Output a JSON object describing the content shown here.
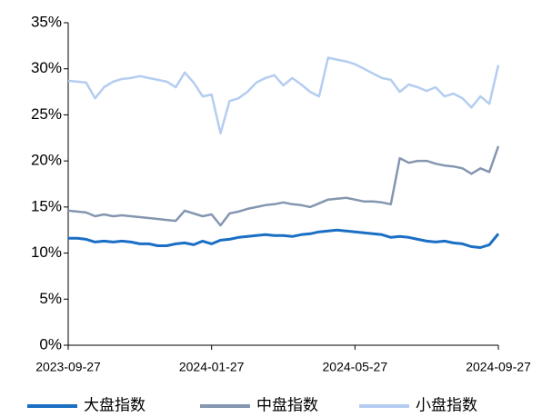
{
  "chart_data": {
    "type": "line",
    "categories": [
      "2023-09-27",
      null,
      null,
      null,
      null,
      null,
      null,
      null,
      null,
      null,
      null,
      null,
      null,
      null,
      null,
      null,
      "2024-01-27",
      null,
      null,
      null,
      null,
      null,
      null,
      null,
      null,
      null,
      null,
      null,
      null,
      null,
      null,
      null,
      "2024-05-27",
      null,
      null,
      null,
      null,
      null,
      null,
      null,
      null,
      null,
      null,
      null,
      null,
      null,
      null,
      null,
      "2024-09-27"
    ],
    "series": [
      {
        "name": "大盘指数",
        "color": "#1a6fc4",
        "values": [
          11.6,
          11.6,
          11.5,
          11.2,
          11.3,
          11.2,
          11.3,
          11.2,
          11.0,
          11.0,
          10.8,
          10.8,
          11.0,
          11.1,
          10.9,
          11.3,
          11.0,
          11.4,
          11.5,
          11.7,
          11.8,
          11.9,
          12.0,
          11.9,
          11.9,
          11.8,
          12.0,
          12.1,
          12.3,
          12.4,
          12.5,
          12.4,
          12.3,
          12.2,
          12.1,
          12.0,
          11.7,
          11.8,
          11.7,
          11.5,
          11.3,
          11.2,
          11.3,
          11.1,
          11.0,
          10.7,
          10.6,
          10.9,
          12.1
        ]
      },
      {
        "name": "中盘指数",
        "color": "#8496b0",
        "values": [
          14.6,
          14.5,
          14.4,
          14.0,
          14.2,
          14.0,
          14.1,
          14.0,
          13.9,
          13.8,
          13.7,
          13.6,
          13.5,
          14.6,
          14.3,
          14.0,
          14.2,
          13.0,
          14.3,
          14.5,
          14.8,
          15.0,
          15.2,
          15.3,
          15.5,
          15.3,
          15.2,
          15.0,
          15.4,
          15.8,
          15.9,
          16.0,
          15.8,
          15.6,
          15.6,
          15.5,
          15.3,
          20.3,
          19.8,
          20.0,
          20.0,
          19.7,
          19.5,
          19.4,
          19.2,
          18.6,
          19.2,
          18.8,
          21.6
        ]
      },
      {
        "name": "小盘指数",
        "color": "#b4cdf0",
        "values": [
          28.7,
          28.6,
          28.5,
          26.8,
          28.0,
          28.6,
          28.9,
          29.0,
          29.2,
          29.0,
          28.8,
          28.6,
          28.0,
          29.6,
          28.5,
          27.0,
          27.2,
          23.0,
          26.5,
          26.8,
          27.5,
          28.5,
          29.0,
          29.3,
          28.2,
          29.0,
          28.3,
          27.5,
          27.0,
          31.2,
          31.0,
          30.8,
          30.5,
          30.0,
          29.5,
          29.0,
          28.8,
          27.5,
          28.3,
          28.0,
          27.6,
          28.0,
          27.0,
          27.3,
          26.8,
          25.8,
          27.0,
          26.2,
          30.4
        ]
      }
    ],
    "ylim": [
      0,
      35
    ],
    "yticks": [
      {
        "value": 0,
        "label": "0%"
      },
      {
        "value": 5,
        "label": "5%"
      },
      {
        "value": 10,
        "label": "10%"
      },
      {
        "value": 15,
        "label": "15%"
      },
      {
        "value": 20,
        "label": "20%"
      },
      {
        "value": 25,
        "label": "25%"
      },
      {
        "value": 30,
        "label": "30%"
      },
      {
        "value": 35,
        "label": "35%"
      }
    ]
  }
}
